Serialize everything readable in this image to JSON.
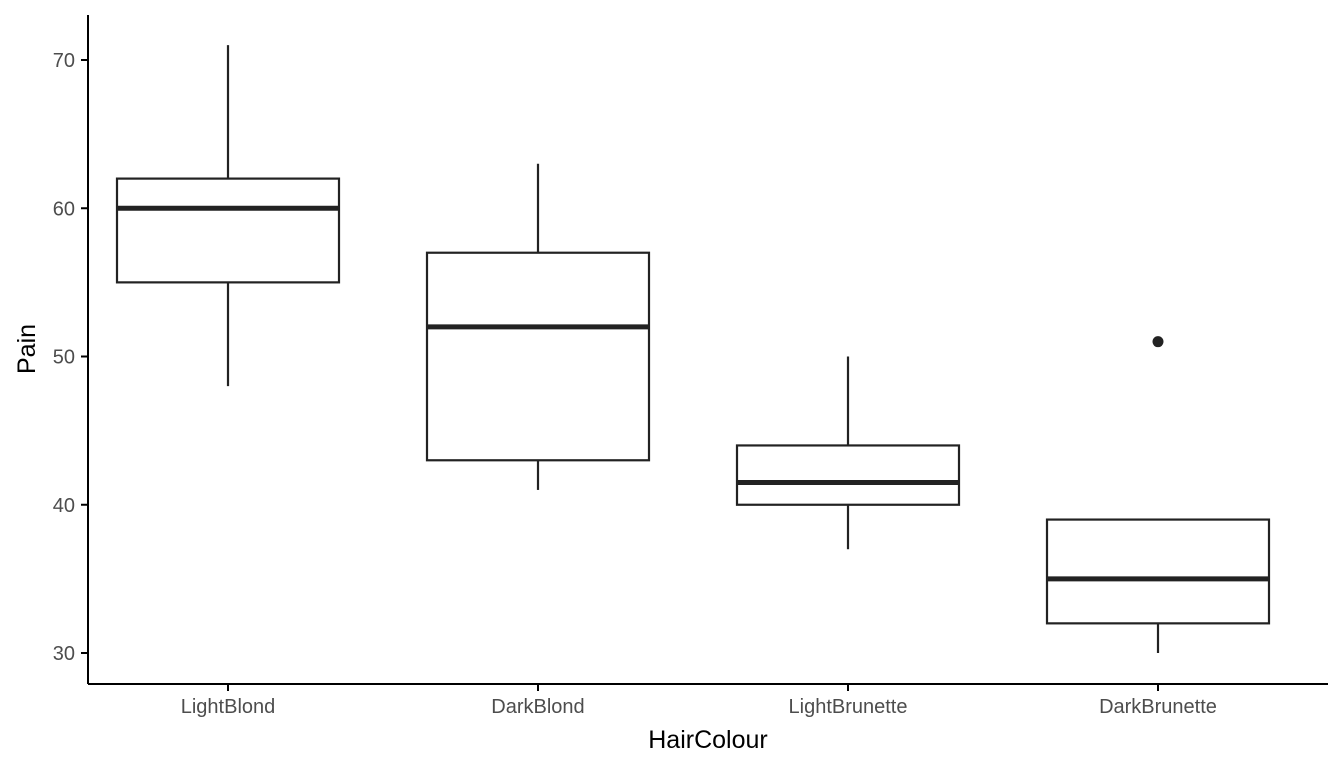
{
  "chart_data": {
    "type": "boxplot",
    "title": "",
    "xlabel": "HairColour",
    "ylabel": "Pain",
    "ylim": [
      28,
      73
    ],
    "yticks": [
      30,
      40,
      50,
      60,
      70
    ],
    "grid": false,
    "legend": "none",
    "colors": {
      "stroke": "#222222",
      "tick_text": "#4d4d4d",
      "axis": "#000000",
      "background": "#ffffff"
    },
    "categories": [
      "LightBlond",
      "DarkBlond",
      "LightBrunette",
      "DarkBrunette"
    ],
    "boxes": [
      {
        "category": "LightBlond",
        "whisker_low": 48,
        "q1": 55,
        "median": 60,
        "q3": 62,
        "whisker_high": 71,
        "outliers": []
      },
      {
        "category": "DarkBlond",
        "whisker_low": 41,
        "q1": 43,
        "median": 52,
        "q3": 57,
        "whisker_high": 63,
        "outliers": []
      },
      {
        "category": "LightBrunette",
        "whisker_low": 37,
        "q1": 40,
        "median": 41.5,
        "q3": 44,
        "whisker_high": 50,
        "outliers": []
      },
      {
        "category": "DarkBrunette",
        "whisker_low": 30,
        "q1": 32,
        "median": 35,
        "q3": 39,
        "whisker_high": 39,
        "outliers": [
          51
        ]
      }
    ]
  }
}
